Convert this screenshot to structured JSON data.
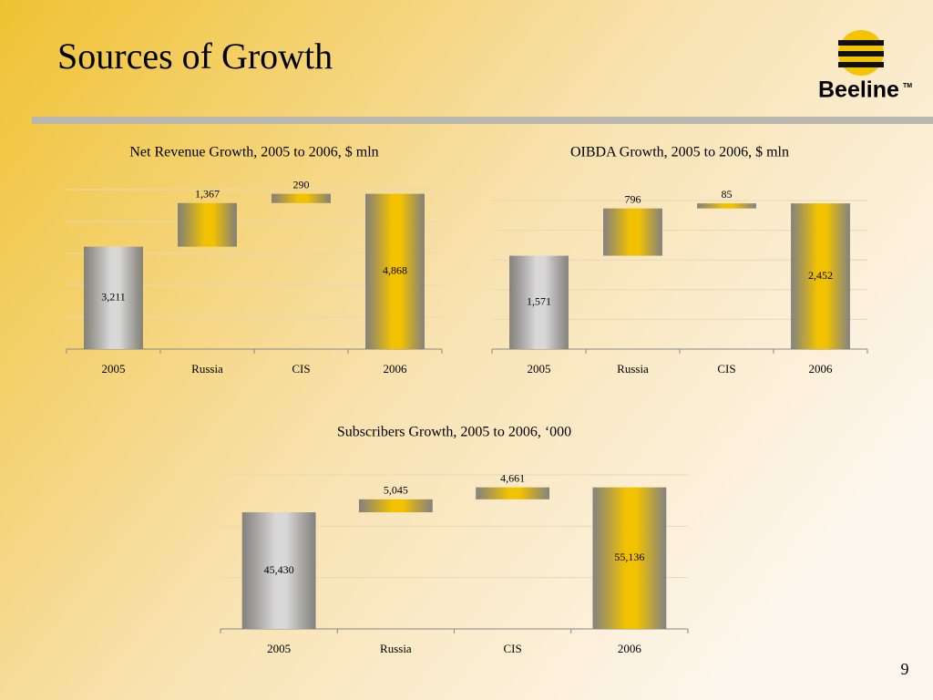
{
  "slide": {
    "title": "Sources of Growth",
    "page": "9"
  },
  "logo": {
    "name": "Beeline",
    "mark": "TM"
  },
  "chart_data": [
    {
      "type": "waterfall",
      "title": "Net Revenue Growth, 2005 to 2006, $ mln",
      "categories": [
        "2005",
        "Russia",
        "CIS",
        "2006"
      ],
      "values": [
        3211,
        1367,
        290,
        4868
      ],
      "value_labels": [
        "3,211",
        "1,367",
        "290",
        "4,868"
      ],
      "colors": [
        "#d8d8d8",
        "#f2c200",
        "#f2c200",
        "#f2c200"
      ],
      "ylim": [
        0,
        5000
      ],
      "yticks": [
        0,
        1000,
        2000,
        3000,
        4000,
        5000
      ],
      "grid": true
    },
    {
      "type": "waterfall",
      "title": "OIBDA Growth, 2005 to 2006, $ mln",
      "categories": [
        "2005",
        "Russia",
        "CIS",
        "2006"
      ],
      "values": [
        1571,
        796,
        85,
        2452
      ],
      "value_labels": [
        "1,571",
        "796",
        "85",
        "2,452"
      ],
      "colors": [
        "#d8d8d8",
        "#f2c200",
        "#f2c200",
        "#f2c200"
      ],
      "ylim": [
        0,
        2500
      ],
      "yticks": [
        0,
        500,
        1000,
        1500,
        2000,
        2500
      ],
      "grid": true
    },
    {
      "type": "waterfall",
      "title": "Subscribers Growth, 2005 to 2006,  ‘000",
      "categories": [
        "2005",
        "Russia",
        "CIS",
        "2006"
      ],
      "values": [
        45430,
        5045,
        4661,
        55136
      ],
      "value_labels": [
        "45,430",
        "5,045",
        "4,661",
        "55,136"
      ],
      "colors": [
        "#d8d8d8",
        "#f2c200",
        "#f2c200",
        "#f2c200"
      ],
      "ylim": [
        0,
        60000
      ],
      "yticks": [
        0,
        20000,
        40000,
        60000
      ],
      "grid": true
    }
  ]
}
